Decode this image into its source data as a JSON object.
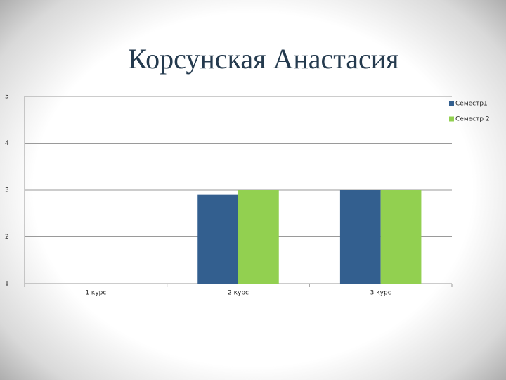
{
  "chart_data": {
    "type": "bar",
    "title": "Корсунская Анастасия",
    "categories": [
      "1 курс",
      "2 курс",
      "3 курс"
    ],
    "series": [
      {
        "name": "Семестр1",
        "color": "#335f8f",
        "values": [
          null,
          2.9,
          3
        ]
      },
      {
        "name": "Семестр 2",
        "color": "#92d050",
        "values": [
          null,
          3,
          3
        ]
      }
    ],
    "ylim": [
      1,
      5
    ],
    "yticks": [
      1,
      2,
      3,
      4,
      5
    ],
    "grid": true,
    "legend": "right"
  }
}
